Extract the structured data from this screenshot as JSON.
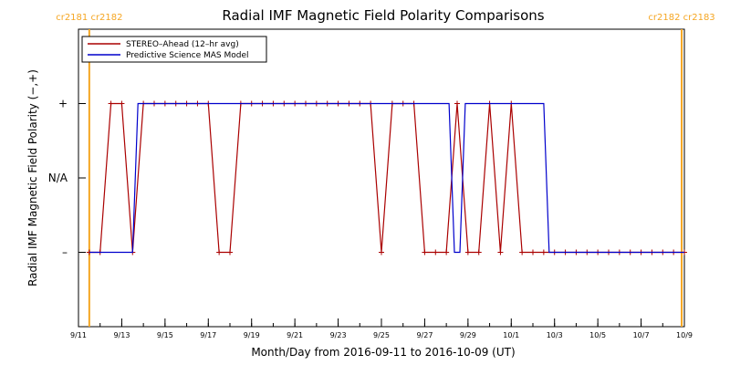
{
  "chart_data": {
    "type": "line",
    "title": "Radial IMF Magnetic Field Polarity Comparisons",
    "xlabel": "Month/Day from 2016-09-11 to 2016-10-09 (UT)",
    "ylabel": "Radial IMF Magnetic Field Polarity (−,+)",
    "xlim": [
      "2016-09-11",
      "2016-10-09"
    ],
    "ylim": [
      -2,
      2
    ],
    "x_ticks": [
      "2016-09-11",
      "2016-09-13",
      "2016-09-15",
      "2016-09-17",
      "2016-09-19",
      "2016-09-21",
      "2016-09-23",
      "2016-09-25",
      "2016-09-27",
      "2016-09-29",
      "2016-10-01",
      "2016-10-03",
      "2016-10-05",
      "2016-10-07",
      "2016-10-09"
    ],
    "x_tick_labels": [
      "9/11",
      "9/13",
      "9/15",
      "9/17",
      "9/19",
      "9/21",
      "9/23",
      "9/25",
      "9/27",
      "9/29",
      "10/1",
      "10/3",
      "10/5",
      "10/7",
      "10/9"
    ],
    "y_ticks": [
      1,
      0,
      -1
    ],
    "y_tick_labels": [
      "+",
      "N/A",
      "–"
    ],
    "carrington_markers": [
      {
        "x": "2016-09-11T12:00",
        "label": "cr2181 cr2182",
        "color": "#f5a623"
      },
      {
        "x": "2016-10-08T21:00",
        "label": "cr2182 cr2183",
        "color": "#f5a623"
      }
    ],
    "legend_position": "top-left",
    "grid": false,
    "series": [
      {
        "name": "STEREO–Ahead (12–hr avg)",
        "color": "#aa0000",
        "x": [
          "2016-09-11T12:00",
          "2016-09-12T00:00",
          "2016-09-12T12:00",
          "2016-09-13T00:00",
          "2016-09-13T12:00",
          "2016-09-14T00:00",
          "2016-09-14T12:00",
          "2016-09-15T00:00",
          "2016-09-15T12:00",
          "2016-09-16T00:00",
          "2016-09-16T12:00",
          "2016-09-17T00:00",
          "2016-09-17T12:00",
          "2016-09-18T00:00",
          "2016-09-18T12:00",
          "2016-09-19T00:00",
          "2016-09-19T12:00",
          "2016-09-20T00:00",
          "2016-09-20T12:00",
          "2016-09-21T00:00",
          "2016-09-21T12:00",
          "2016-09-22T00:00",
          "2016-09-22T12:00",
          "2016-09-23T00:00",
          "2016-09-23T12:00",
          "2016-09-24T00:00",
          "2016-09-24T12:00",
          "2016-09-25T00:00",
          "2016-09-25T12:00",
          "2016-09-26T00:00",
          "2016-09-26T12:00",
          "2016-09-27T00:00",
          "2016-09-27T12:00",
          "2016-09-28T00:00",
          "2016-09-28T12:00",
          "2016-09-29T00:00",
          "2016-09-29T12:00",
          "2016-09-30T00:00",
          "2016-09-30T12:00",
          "2016-10-01T00:00",
          "2016-10-01T12:00",
          "2016-10-02T00:00",
          "2016-10-02T12:00",
          "2016-10-03T00:00",
          "2016-10-03T12:00",
          "2016-10-04T00:00",
          "2016-10-04T12:00",
          "2016-10-05T00:00",
          "2016-10-05T12:00",
          "2016-10-06T00:00",
          "2016-10-06T12:00",
          "2016-10-07T00:00",
          "2016-10-07T12:00",
          "2016-10-08T00:00",
          "2016-10-08T12:00",
          "2016-10-09T00:00"
        ],
        "values": [
          -1,
          -1,
          1,
          1,
          -1,
          1,
          1,
          1,
          1,
          1,
          1,
          1,
          -1,
          -1,
          1,
          1,
          1,
          1,
          1,
          1,
          1,
          1,
          1,
          1,
          1,
          1,
          1,
          -1,
          1,
          1,
          1,
          -1,
          -1,
          -1,
          1,
          -1,
          -1,
          1,
          -1,
          1,
          -1,
          -1,
          -1,
          -1,
          -1,
          -1,
          -1,
          -1,
          -1,
          -1,
          -1,
          -1,
          -1,
          -1,
          -1,
          -1
        ]
      },
      {
        "name": "Predictive Science MAS Model",
        "color": "#0000cc",
        "x": [
          "2016-09-11T12:00",
          "2016-09-13T12:00",
          "2016-09-13T18:00",
          "2016-09-28T03:00",
          "2016-09-28T09:00",
          "2016-09-28T15:00",
          "2016-09-28T21:00",
          "2016-10-02T12:00",
          "2016-10-02T18:00",
          "2016-10-09T00:00"
        ],
        "values": [
          -1,
          -1,
          1,
          1,
          -1,
          -1,
          1,
          1,
          -1,
          -1
        ]
      }
    ]
  }
}
